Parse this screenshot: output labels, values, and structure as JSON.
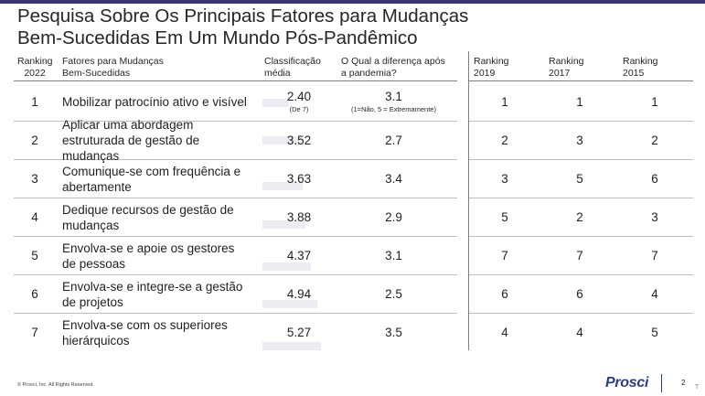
{
  "title": {
    "line1": "Pesquisa Sobre Os Principais Fatores para Mudanças",
    "line2": "Bem-Sucedidas Em Um Mundo Pós-Pandêmico"
  },
  "headers": {
    "rank2022": [
      "Ranking",
      "2022"
    ],
    "factor": [
      "Fatores para Mudanças",
      "Bem-Sucedidas"
    ],
    "score": [
      "Classificação",
      "média"
    ],
    "difference": [
      "O Qual a diferença após",
      "a pandemia?"
    ],
    "rank2019": [
      "Ranking",
      "2019"
    ],
    "rank2017": [
      "Ranking",
      "2017"
    ],
    "rank2015": [
      "Ranking",
      "2015"
    ]
  },
  "rows": [
    {
      "rank": "1",
      "factor": "Mobilizar patrocínio ativo e visível",
      "score": "2.40",
      "score_note": "(De 7)",
      "score_value": 2.4,
      "diff": "3.1",
      "diff_note": "(1=Não, 5 = Extremamente)",
      "r2019": "1",
      "r2017": "1",
      "r2015": "1"
    },
    {
      "rank": "2",
      "factor": "Aplicar uma abordagem estruturada de gestão de mudanças",
      "score": "3.52",
      "score_value": 3.52,
      "diff": "2.7",
      "r2019": "2",
      "r2017": "3",
      "r2015": "2"
    },
    {
      "rank": "3",
      "factor": "Comunique-se com frequência e abertamente",
      "score": "3.63",
      "score_value": 3.63,
      "diff": "3.4",
      "r2019": "3",
      "r2017": "5",
      "r2015": "6"
    },
    {
      "rank": "4",
      "factor": "Dedique recursos de gestão de mudanças",
      "score": "3.88",
      "score_value": 3.88,
      "diff": "2.9",
      "r2019": "5",
      "r2017": "2",
      "r2015": "3"
    },
    {
      "rank": "5",
      "factor": "Envolva-se e apoie os gestores de pessoas",
      "score": "4.37",
      "score_value": 4.37,
      "diff": "3.1",
      "r2019": "7",
      "r2017": "7",
      "r2015": "7"
    },
    {
      "rank": "6",
      "factor": "Envolva-se e integre-se a gestão de projetos",
      "score": "4.94",
      "score_value": 4.94,
      "diff": "2.5",
      "r2019": "6",
      "r2017": "6",
      "r2015": "4"
    },
    {
      "rank": "7",
      "factor": "Envolva-se com os superiores hierárquicos",
      "score": "5.27",
      "score_value": 5.27,
      "diff": "3.5",
      "r2019": "4",
      "r2017": "4",
      "r2015": "5"
    }
  ],
  "score_scale_max": 7,
  "footer": {
    "copyright": "© Prosci, Inc. All Rights Reserved.",
    "logo": "Prosci",
    "page": "2",
    "side_mark": "T"
  },
  "colors": {
    "top_bar": "#3a3470",
    "logo": "#2b3b8f",
    "score_bar": "#ececf2"
  }
}
